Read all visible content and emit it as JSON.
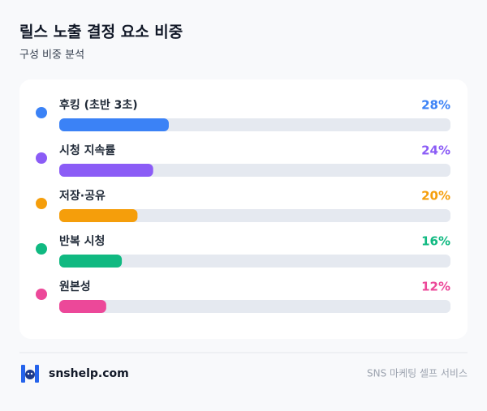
{
  "chart_data": {
    "type": "bar",
    "orientation": "horizontal",
    "title": "릴스 노출 결정 요소 비중",
    "subtitle": "구성 비중 분석",
    "categories": [
      "후킹 (초반 3초)",
      "시청 지속률",
      "저장·공유",
      "반복 시청",
      "원본성"
    ],
    "values": [
      28,
      24,
      20,
      16,
      12
    ],
    "value_labels": [
      "28%",
      "24%",
      "20%",
      "16%",
      "12%"
    ],
    "colors": [
      "#3b82f6",
      "#8b5cf6",
      "#f59e0b",
      "#10b981",
      "#ec4899"
    ],
    "xlim": [
      0,
      100
    ]
  },
  "footer": {
    "brand": "snshelp.com",
    "tagline": "SNS 마케팅 셀프 서비스"
  }
}
